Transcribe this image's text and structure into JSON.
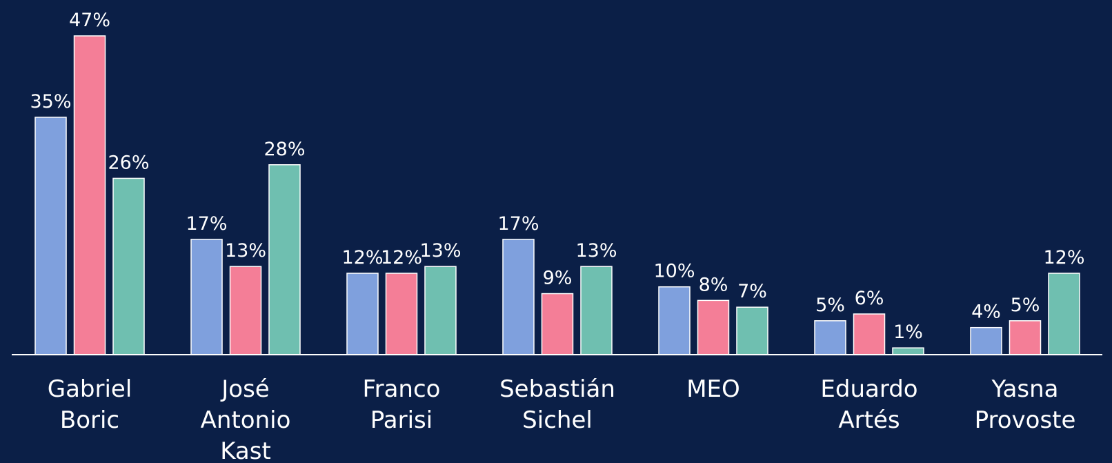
{
  "chart_data": {
    "type": "bar",
    "categories": [
      "Gabriel Boric",
      "José Antonio Kast",
      "Franco Parisi",
      "Sebastián Sichel",
      "MEO",
      "Eduardo Artés",
      "Yasna Provoste"
    ],
    "series": [
      {
        "color": "#7fa0dd",
        "values": [
          35,
          17,
          12,
          17,
          10,
          5,
          4
        ],
        "value_labels": [
          "35%",
          "17%",
          "12%",
          "17%",
          "10%",
          "5%",
          "4%"
        ]
      },
      {
        "color": "#f47e97",
        "values": [
          47,
          13,
          12,
          9,
          8,
          6,
          5
        ],
        "value_labels": [
          "47%",
          "13%",
          "12%",
          "9%",
          "8%",
          "6%",
          "5%"
        ]
      },
      {
        "color": "#6fbfb0",
        "values": [
          26,
          28,
          13,
          13,
          7,
          1,
          12
        ],
        "value_labels": [
          "26%",
          "28%",
          "13%",
          "13%",
          "7%",
          "1%",
          "12%"
        ]
      }
    ]
  }
}
